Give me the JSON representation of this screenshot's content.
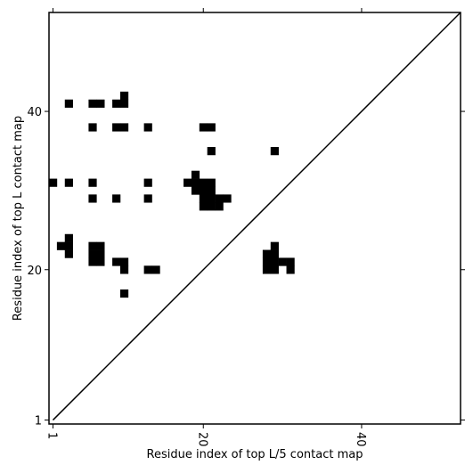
{
  "chart_data": {
    "type": "scatter",
    "xlabel": "Residue index of top L/5 contact map",
    "ylabel": "Residue index of top L contact map",
    "xlim": [
      0.5,
      52.5
    ],
    "ylim": [
      0.5,
      52.5
    ],
    "xticks": [
      1,
      20,
      40
    ],
    "yticks": [
      1,
      20,
      40
    ],
    "color": "#000000",
    "marker": "square",
    "cells": {
      "x": [
        3,
        6,
        7,
        9,
        10,
        10,
        6,
        9,
        10,
        13,
        20,
        21,
        21,
        29,
        1,
        3,
        6,
        13,
        9,
        6,
        13,
        19,
        18,
        19,
        20,
        21,
        19,
        20,
        21,
        20,
        21,
        22,
        23,
        20,
        21,
        22,
        3,
        2,
        3,
        6,
        7,
        3,
        6,
        7,
        6,
        7,
        9,
        10,
        10,
        13,
        14,
        10,
        29,
        28,
        29,
        28,
        29,
        30,
        31,
        28,
        29,
        31
      ],
      "y": [
        41,
        41,
        41,
        41,
        41,
        42,
        38,
        38,
        38,
        38,
        38,
        38,
        35,
        35,
        31,
        31,
        31,
        31,
        29,
        29,
        29,
        32,
        31,
        31,
        31,
        31,
        30,
        30,
        30,
        29,
        29,
        29,
        29,
        28,
        28,
        28,
        24,
        23,
        23,
        23,
        23,
        22,
        22,
        22,
        21,
        21,
        21,
        21,
        20,
        20,
        20,
        17,
        23,
        22,
        22,
        21,
        21,
        21,
        21,
        20,
        20,
        20
      ]
    },
    "diagonal": {
      "x": [
        1,
        52.5
      ],
      "y": [
        1,
        52.5
      ]
    }
  }
}
